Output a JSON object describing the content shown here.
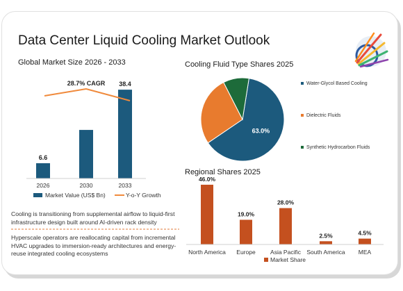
{
  "title": "Data Center Liquid Cooling Market Outlook",
  "colors": {
    "navy": "#1c5a7d",
    "orange": "#e87b2e",
    "rust": "#c4501f",
    "green": "#1d6b3a",
    "growth_line": "#f08a3c"
  },
  "logo": "multicolor-rays-logo",
  "descriptions": [
    "Cooling is transitioning from supplemental airflow to liquid-first infrastructure design built around AI-driven rack density",
    "Hyperscale operators are reallocating capital from incremental HVAC upgrades to immersion-ready architectures and energy-reuse integrated cooling ecosystems"
  ],
  "chart_data": [
    {
      "type": "bar",
      "title": "Global Market Size 2026 - 2033",
      "categories": [
        "2026",
        "2030",
        "2033"
      ],
      "series": [
        {
          "name": "Market Value (US$ Bn)",
          "values": [
            6.6,
            21.0,
            38.4
          ]
        }
      ],
      "data_labels": [
        "6.6",
        "",
        "38.4"
      ],
      "growth_line": {
        "name": "Y-o-Y Growth",
        "annotation": "28.7% CAGR"
      },
      "legend": "bottom"
    },
    {
      "type": "pie",
      "title": "Cooling Fluid Type Shares 2025",
      "slices": [
        {
          "label": "Water-Glycol Based Cooling",
          "value": 63.0,
          "data_label": "63.0%",
          "color": "#1c5a7d"
        },
        {
          "label": "Dielectric Fluids",
          "value": 27.0,
          "data_label": "",
          "color": "#e87b2e"
        },
        {
          "label": "Synthetic Hydrocarbon Fluids",
          "value": 10.0,
          "data_label": "",
          "color": "#1d6b3a"
        }
      ],
      "legend": "right"
    },
    {
      "type": "bar",
      "title": "Regional Shares 2025",
      "categories": [
        "North America",
        "Europe",
        "Asia Pacific",
        "South America",
        "MEA"
      ],
      "series": [
        {
          "name": "Market Share",
          "values": [
            46.0,
            19.0,
            28.0,
            2.5,
            4.5
          ]
        }
      ],
      "data_labels": [
        "46.0%",
        "19.0%",
        "28.0%",
        "2.5%",
        "4.5%"
      ],
      "legend": "bottom"
    }
  ]
}
